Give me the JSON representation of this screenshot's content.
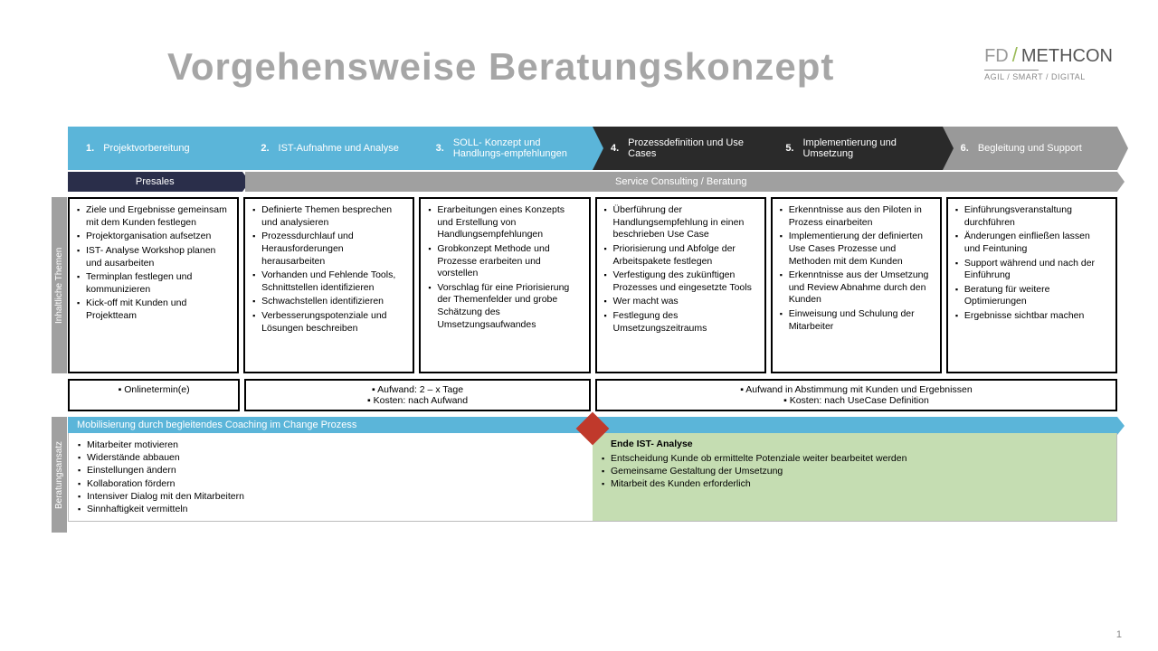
{
  "title": "Vorgehensweise Beratungskonzept",
  "title_color": "#a6a6a6",
  "logo": {
    "fd": "FD",
    "meth": "METHCON",
    "sub": "AGIL / SMART / DIGITAL"
  },
  "chevrons": [
    {
      "num": "1.",
      "label": "Projektvorbereitung",
      "style": "blue"
    },
    {
      "num": "2.",
      "label": "IST-Aufnahme und Analyse",
      "style": "blue"
    },
    {
      "num": "3.",
      "label": "SOLL- Konzept und Handlungs-empfehlungen",
      "style": "blue"
    },
    {
      "num": "4.",
      "label": "Prozessdefinition und Use Cases",
      "style": "black"
    },
    {
      "num": "5.",
      "label": "Implementierung und Umsetzung",
      "style": "black"
    },
    {
      "num": "6.",
      "label": "Begleitung und Support",
      "style": "grey"
    }
  ],
  "phase_presales": "Presales",
  "phase_service": "Service Consulting / Beratung",
  "side_themes": "Inhaltliche Themen",
  "side_beratung": "Beratungsansatz",
  "themes": [
    [
      "Ziele und Ergebnisse gemeinsam mit dem Kunden festlegen",
      "Projektorganisation aufsetzen",
      "IST- Analyse Workshop planen und ausarbeiten",
      "Terminplan festlegen und kommunizieren",
      "Kick-off mit Kunden und Projektteam"
    ],
    [
      "Definierte Themen besprechen und analysieren",
      "Prozessdurchlauf und Herausforderungen herausarbeiten",
      "Vorhanden und Fehlende Tools, Schnittstellen identifizieren",
      "Schwachstellen identifizieren",
      "Verbesserungspotenziale und Lösungen beschreiben"
    ],
    [
      "Erarbeitungen eines Konzepts und Erstellung von Handlungsempfehlungen",
      "Grobkonzept Methode und Prozesse erarbeiten und vorstellen",
      "Vorschlag für eine Priorisierung der Themenfelder und grobe Schätzung des Umsetzungsaufwandes"
    ],
    [
      "Überführung der Handlungsempfehlung in einen beschrieben Use Case",
      "Priorisierung und Abfolge der Arbeitspakete festlegen",
      "Verfestigung des zukünftigen Prozesses und eingesetzte Tools",
      "Wer macht was",
      "Festlegung des Umsetzungszeitraums"
    ],
    [
      "Erkenntnisse aus den Piloten in Prozess einarbeiten",
      "Implementierung der definierten Use Cases Prozesse und Methoden mit dem Kunden",
      "Erkenntnisse aus der Umsetzung  und Review Abnahme durch den Kunden",
      "Einweisung und Schulung der Mitarbeiter"
    ],
    [
      "Einführungsveranstaltung durchführen",
      "Änderungen einfließen lassen und Feintuning",
      "Support während und nach der Einführung",
      "Beratung für weitere Optimierungen",
      "Ergebnisse sichtbar machen"
    ]
  ],
  "effort": {
    "e1": "▪   Onlinetermin(e)",
    "e2a": "▪   Aufwand: 2 – x Tage",
    "e2b": "▪   Kosten: nach Aufwand",
    "e3a": "▪   Aufwand in Abstimmung mit Kunden und Ergebnissen",
    "e3b": "▪   Kosten: nach UseCase Definition"
  },
  "mobilisierung": "Mobilisierung durch begleitendes Coaching im Change Prozess",
  "bottom_left": [
    "Mitarbeiter motivieren",
    "Widerstände abbauen",
    "Einstellungen ändern",
    "Kollaboration fördern",
    "Intensiver Dialog mit den Mitarbeitern",
    "Sinnhaftigkeit vermitteln"
  ],
  "ende_title": "Ende IST- Analyse",
  "bottom_right": [
    "Entscheidung Kunde ob ermittelte Potenziale weiter bearbeitet werden",
    "Gemeinsame Gestaltung der Umsetzung",
    "Mitarbeit des Kunden erforderlich"
  ],
  "pagenum": "1",
  "colors": {
    "blue": "#5bb5d9",
    "black": "#2a2a2a",
    "grey": "#999999",
    "green_box": "#c5ddb2",
    "diamond": "#c0392b",
    "presales": "#2a2e4a",
    "title": "#a6a6a6"
  }
}
